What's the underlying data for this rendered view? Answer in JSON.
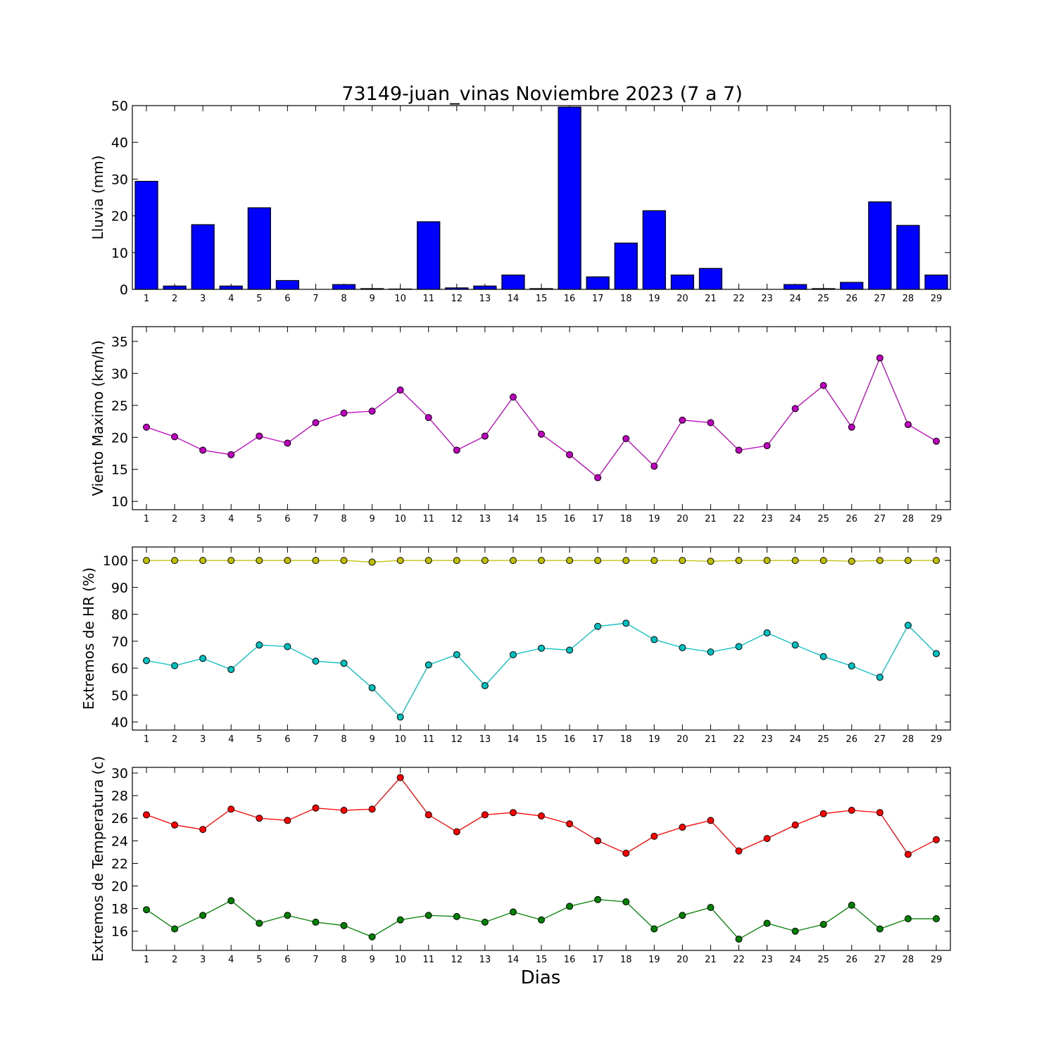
{
  "figure": {
    "title": "73149-juan_vinas Noviembre 2023  (7 a 7)",
    "xlabel": "Dias"
  },
  "chart_data": [
    {
      "type": "bar",
      "ylabel": "Lluvia (mm)",
      "ylim": [
        0,
        50
      ],
      "yticks": [
        0,
        10,
        20,
        30,
        40,
        50
      ],
      "categories": [
        "1",
        "2",
        "3",
        "4",
        "5",
        "6",
        "7",
        "8",
        "9",
        "10",
        "11",
        "12",
        "13",
        "14",
        "15",
        "16",
        "17",
        "18",
        "19",
        "20",
        "21",
        "22",
        "23",
        "24",
        "25",
        "26",
        "27",
        "28",
        "29"
      ],
      "series": [
        {
          "values": [
            29.4,
            0.9,
            17.6,
            0.9,
            22.2,
            2.4,
            0.0,
            1.3,
            0.2,
            0.1,
            18.4,
            0.4,
            0.9,
            3.9,
            0.2,
            49.6,
            3.4,
            12.6,
            21.4,
            3.9,
            5.7,
            0.0,
            0.0,
            1.3,
            0.2,
            1.9,
            23.8,
            17.4,
            3.9
          ],
          "color": "#0000ff"
        }
      ],
      "grid": false
    },
    {
      "type": "line",
      "ylabel": "Viento Maximo (km/h)",
      "ylim": [
        8.7,
        37.3
      ],
      "yticks": [
        10,
        15,
        20,
        25,
        30,
        35
      ],
      "x": [
        1,
        2,
        3,
        4,
        5,
        6,
        7,
        8,
        9,
        10,
        11,
        12,
        13,
        14,
        15,
        16,
        17,
        18,
        19,
        20,
        21,
        22,
        23,
        24,
        25,
        26,
        27,
        28,
        29
      ],
      "series": [
        {
          "values": [
            21.6,
            20.1,
            18.0,
            17.3,
            20.2,
            19.1,
            22.3,
            23.8,
            24.1,
            27.4,
            23.1,
            18.0,
            20.2,
            26.3,
            20.5,
            17.3,
            13.7,
            19.8,
            15.5,
            22.7,
            22.3,
            18.0,
            18.7,
            24.5,
            28.1,
            21.6,
            32.4,
            22.0,
            19.4
          ],
          "color": "#bf00bf"
        }
      ],
      "grid": false
    },
    {
      "type": "line",
      "ylabel": "Extremos de HR (%)",
      "ylim": [
        37,
        105
      ],
      "yticks": [
        40,
        50,
        60,
        70,
        80,
        90,
        100
      ],
      "x": [
        1,
        2,
        3,
        4,
        5,
        6,
        7,
        8,
        9,
        10,
        11,
        12,
        13,
        14,
        15,
        16,
        17,
        18,
        19,
        20,
        21,
        22,
        23,
        24,
        25,
        26,
        27,
        28,
        29
      ],
      "series": [
        {
          "values": [
            100,
            100,
            100,
            100,
            100,
            100,
            100,
            100,
            99.4,
            100,
            100,
            100,
            100,
            100,
            100,
            100,
            100,
            100,
            100,
            100,
            99.7,
            100,
            100,
            100,
            100,
            99.7,
            100,
            100,
            100
          ],
          "color": "#bfbf00"
        },
        {
          "values": [
            62.8,
            60.9,
            63.6,
            59.5,
            68.6,
            68.0,
            62.6,
            61.8,
            52.7,
            41.8,
            61.2,
            65.0,
            53.5,
            65.0,
            67.4,
            66.7,
            75.5,
            76.7,
            70.6,
            67.6,
            66.0,
            68.0,
            73.1,
            68.6,
            64.3,
            60.8,
            56.6,
            75.9,
            65.4
          ],
          "color": "#00bfbf"
        }
      ],
      "grid": false
    },
    {
      "type": "line",
      "ylabel": "Extremos de Temperatura (c)",
      "ylim": [
        14.3,
        30.5
      ],
      "yticks": [
        16,
        18,
        20,
        22,
        24,
        26,
        28,
        30
      ],
      "x": [
        1,
        2,
        3,
        4,
        5,
        6,
        7,
        8,
        9,
        10,
        11,
        12,
        13,
        14,
        15,
        16,
        17,
        18,
        19,
        20,
        21,
        22,
        23,
        24,
        25,
        26,
        27,
        28,
        29
      ],
      "series": [
        {
          "values": [
            26.3,
            25.4,
            25.0,
            26.8,
            26.0,
            25.8,
            26.9,
            26.7,
            26.8,
            29.6,
            26.3,
            24.8,
            26.3,
            26.5,
            26.2,
            25.5,
            24.0,
            22.9,
            24.4,
            25.2,
            25.8,
            23.1,
            24.2,
            25.4,
            26.4,
            26.7,
            26.5,
            22.8,
            24.1
          ],
          "color": "#ff0000"
        },
        {
          "values": [
            17.9,
            16.2,
            17.4,
            18.7,
            16.7,
            17.4,
            16.8,
            16.5,
            15.5,
            17.0,
            17.4,
            17.3,
            16.8,
            17.7,
            17.0,
            18.2,
            18.8,
            18.6,
            16.2,
            17.4,
            18.1,
            15.3,
            16.7,
            16.0,
            16.6,
            18.3,
            16.2,
            17.1,
            17.1
          ],
          "color": "#008000"
        }
      ],
      "grid": false
    }
  ]
}
